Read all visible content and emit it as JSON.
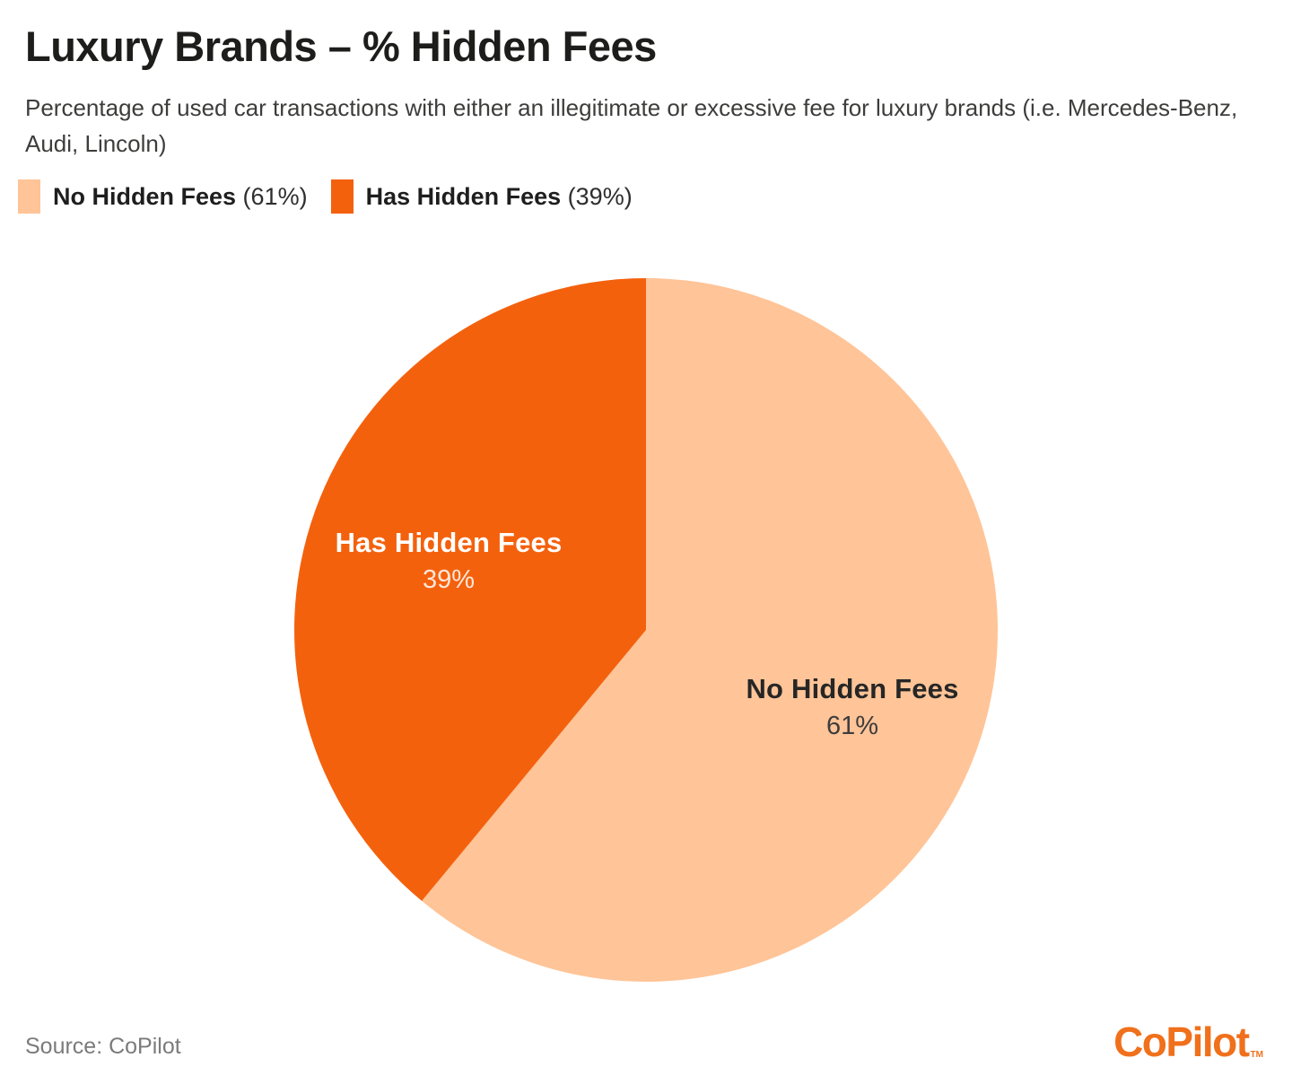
{
  "header": {
    "title": "Luxury Brands – % Hidden Fees",
    "subtitle": "Percentage of used car transactions with either an illegitimate or excessive fee for luxury brands (i.e. Mercedes-Benz, Audi, Lincoln)"
  },
  "legend": {
    "items": [
      {
        "label": "No Hidden Fees",
        "value_text": "(61%)",
        "color": "#FFC497"
      },
      {
        "label": "Has Hidden Fees",
        "value_text": "(39%)",
        "color": "#F4610D"
      }
    ]
  },
  "chart_data": {
    "type": "pie",
    "title": "Luxury Brands – % Hidden Fees",
    "start_angle_deg": 0,
    "direction": "clockwise",
    "legend_position": "top-left",
    "slices": [
      {
        "label": "No Hidden Fees",
        "value": 61,
        "pct_text": "61%",
        "color": "#FFC497",
        "label_style": "dark"
      },
      {
        "label": "Has Hidden Fees",
        "value": 39,
        "pct_text": "39%",
        "color": "#F4610D",
        "label_style": "light"
      }
    ]
  },
  "footer": {
    "source": "Source: CoPilot",
    "brand": "CoPilot",
    "brand_tm": "TM",
    "brand_color": "#F0701C"
  }
}
